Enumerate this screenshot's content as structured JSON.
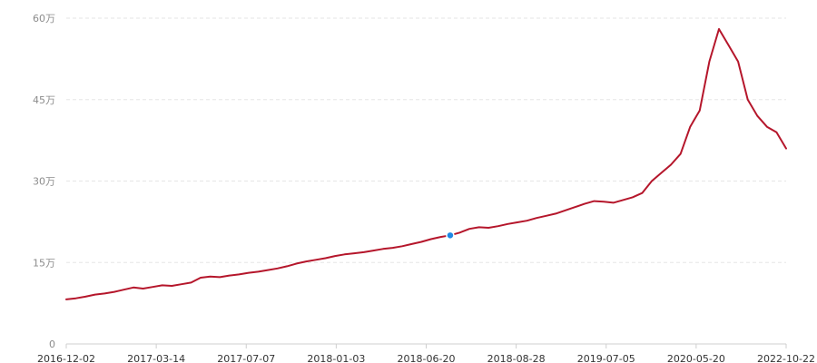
{
  "chart_data": {
    "type": "line",
    "title": "",
    "xlabel": "",
    "ylabel": "",
    "ylim": [
      0,
      600000
    ],
    "y_ticks": [
      {
        "value": 0,
        "label": "0"
      },
      {
        "value": 150000,
        "label": "15万"
      },
      {
        "value": 300000,
        "label": "30万"
      },
      {
        "value": 450000,
        "label": "45万"
      },
      {
        "value": 600000,
        "label": "60万"
      }
    ],
    "x_ticks": [
      "2016-12-02",
      "2017-03-14",
      "2017-07-07",
      "2018-01-03",
      "2018-06-20",
      "2018-08-28",
      "2019-07-05",
      "2020-05-20",
      "2022-10-22"
    ],
    "grid": true,
    "legend": "none",
    "colors": {
      "line": "#b5162b",
      "marker": "#1e88e5"
    },
    "highlight_index": 40,
    "values": [
      82000,
      84000,
      87000,
      91000,
      93000,
      96000,
      100000,
      104000,
      102000,
      105000,
      108000,
      107000,
      110000,
      113000,
      122000,
      124000,
      123000,
      126000,
      128000,
      131000,
      133000,
      136000,
      139000,
      143000,
      148000,
      152000,
      155000,
      158000,
      162000,
      165000,
      167000,
      169000,
      172000,
      175000,
      177000,
      180000,
      184000,
      188000,
      193000,
      197000,
      200000,
      205000,
      212000,
      215000,
      214000,
      217000,
      221000,
      224000,
      227000,
      232000,
      236000,
      240000,
      246000,
      252000,
      258000,
      263000,
      262000,
      260000,
      265000,
      270000,
      278000,
      300000,
      315000,
      330000,
      350000,
      400000,
      430000,
      520000,
      580000,
      550000,
      520000,
      450000,
      420000,
      400000,
      390000,
      360000
    ]
  }
}
